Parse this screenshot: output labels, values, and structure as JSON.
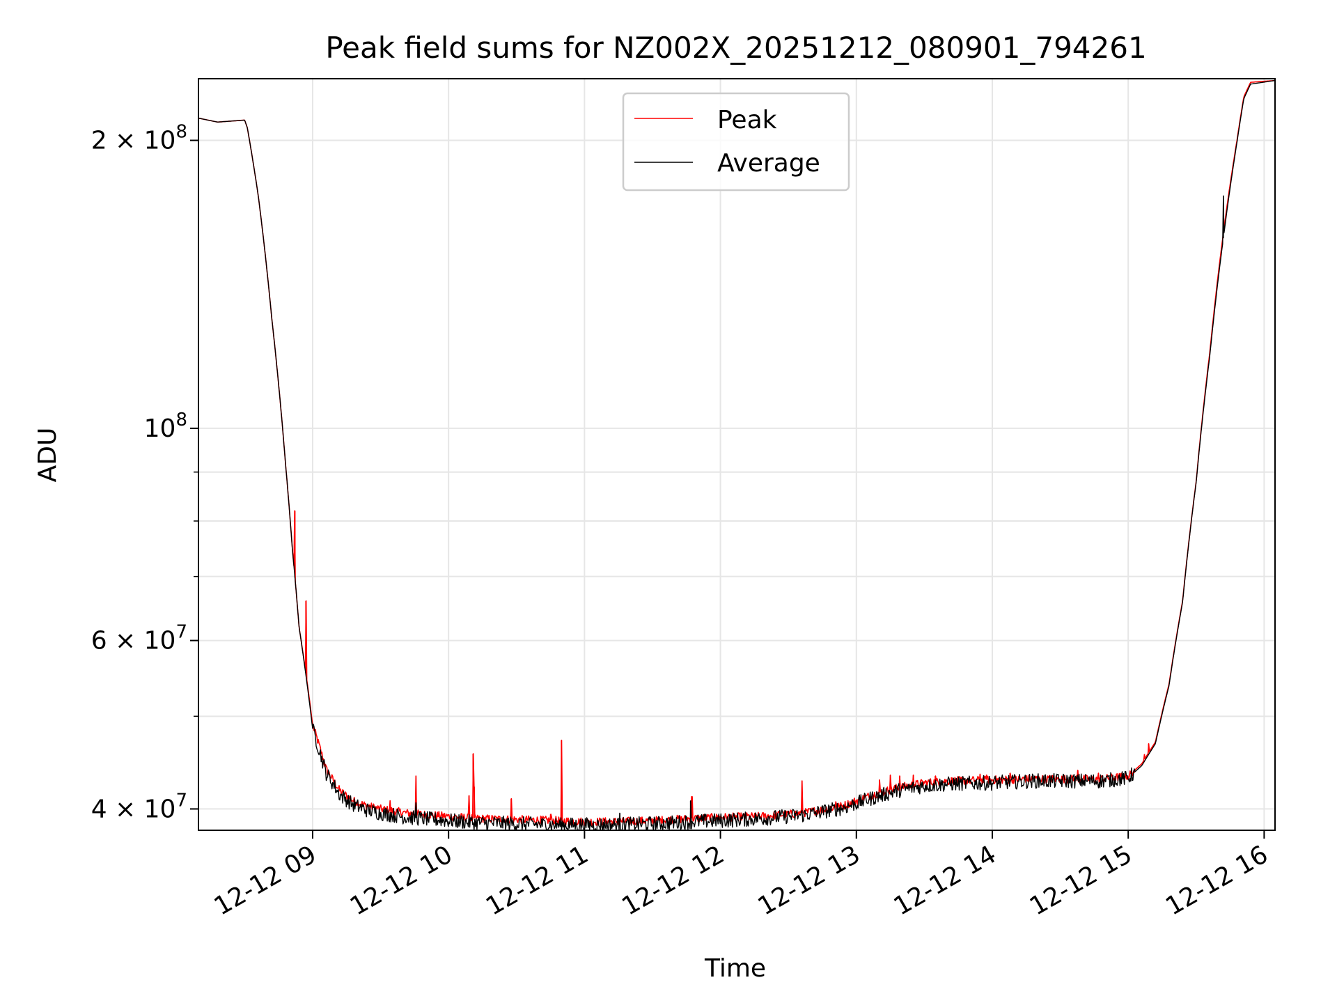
{
  "chart_data": {
    "type": "line",
    "title": "Peak field sums for NZ002X_20251212_080901_794261",
    "xlabel": "Time",
    "ylabel": "ADU",
    "yscale": "log",
    "xlim_hours": [
      8.16,
      16.08
    ],
    "ylim": [
      38000000,
      232000000
    ],
    "grid": true,
    "legend_position": "upper center",
    "x_ticks": [
      {
        "hour": 9,
        "label": "12-12 09"
      },
      {
        "hour": 10,
        "label": "12-12 10"
      },
      {
        "hour": 11,
        "label": "12-12 11"
      },
      {
        "hour": 12,
        "label": "12-12 12"
      },
      {
        "hour": 13,
        "label": "12-12 13"
      },
      {
        "hour": 14,
        "label": "12-12 14"
      },
      {
        "hour": 15,
        "label": "12-12 15"
      },
      {
        "hour": 16,
        "label": "12-12 16"
      }
    ],
    "y_ticks": [
      {
        "value": 40000000,
        "mantissa": "4",
        "exp": "7"
      },
      {
        "value": 60000000,
        "mantissa": "6",
        "exp": "7"
      },
      {
        "value": 100000000,
        "mantissa": "",
        "exp": "8"
      },
      {
        "value": 200000000,
        "mantissa": "2",
        "exp": "8"
      }
    ],
    "y_minor_ticks": [
      50000000,
      70000000,
      80000000,
      90000000
    ],
    "series": [
      {
        "name": "Peak",
        "color": "#ff0000",
        "x": [
          8.16,
          8.3,
          8.5,
          8.52,
          8.6,
          8.7,
          8.8,
          8.85,
          8.9,
          9.0,
          9.1,
          9.2,
          9.3,
          9.4,
          9.5,
          9.6,
          9.7,
          9.8,
          9.9,
          10.0,
          10.2,
          10.5,
          10.8,
          11.0,
          11.2,
          11.5,
          11.8,
          12.0,
          12.3,
          12.6,
          12.9,
          13.1,
          13.3,
          13.5,
          13.7,
          14.0,
          14.3,
          14.6,
          14.8,
          15.0,
          15.1,
          15.2,
          15.3,
          15.4,
          15.5,
          15.6,
          15.7,
          15.8,
          15.85,
          15.9,
          16.08
        ],
        "y": [
          211000000,
          209000000,
          210000000,
          206000000,
          175000000,
          130000000,
          92000000,
          75000000,
          62000000,
          49000000,
          44000000,
          41800000,
          40800000,
          40300000,
          40000000,
          39800000,
          39600000,
          39500000,
          39400000,
          39300000,
          39100000,
          39000000,
          38900000,
          38800000,
          38800000,
          38900000,
          39100000,
          39200000,
          39300000,
          39600000,
          40300000,
          41300000,
          42100000,
          42600000,
          42800000,
          42900000,
          43000000,
          43000000,
          43000000,
          43300000,
          44600000,
          47000000,
          54000000,
          66000000,
          88000000,
          120000000,
          160000000,
          200000000,
          222000000,
          230000000,
          231000000
        ],
        "spikes": [
          {
            "x": 8.87,
            "y": 82000000
          },
          {
            "x": 8.95,
            "y": 66000000
          },
          {
            "x": 9.57,
            "y": 40800000
          },
          {
            "x": 9.76,
            "y": 43300000
          },
          {
            "x": 10.15,
            "y": 41300000
          },
          {
            "x": 10.18,
            "y": 45700000
          },
          {
            "x": 10.19,
            "y": 42200000
          },
          {
            "x": 10.46,
            "y": 41000000
          },
          {
            "x": 10.75,
            "y": 39500000
          },
          {
            "x": 10.83,
            "y": 47200000
          },
          {
            "x": 11.79,
            "y": 41200000
          },
          {
            "x": 12.6,
            "y": 42800000
          },
          {
            "x": 12.85,
            "y": 40700000
          },
          {
            "x": 13.17,
            "y": 42900000
          },
          {
            "x": 13.25,
            "y": 43400000
          },
          {
            "x": 13.32,
            "y": 43300000
          },
          {
            "x": 13.42,
            "y": 43400000
          },
          {
            "x": 13.58,
            "y": 43300000
          },
          {
            "x": 13.91,
            "y": 43500000
          },
          {
            "x": 13.96,
            "y": 43400000
          },
          {
            "x": 14.13,
            "y": 43600000
          },
          {
            "x": 14.63,
            "y": 43900000
          },
          {
            "x": 14.78,
            "y": 43600000
          },
          {
            "x": 15.12,
            "y": 45600000
          },
          {
            "x": 15.15,
            "y": 46800000
          }
        ]
      },
      {
        "name": "Average",
        "color": "#000000",
        "x": [
          8.16,
          8.3,
          8.5,
          8.52,
          8.6,
          8.7,
          8.8,
          8.85,
          8.9,
          9.0,
          9.1,
          9.2,
          9.3,
          9.4,
          9.5,
          9.6,
          9.7,
          9.8,
          9.9,
          10.0,
          10.2,
          10.5,
          10.8,
          11.0,
          11.2,
          11.5,
          11.8,
          12.0,
          12.3,
          12.6,
          12.9,
          13.1,
          13.3,
          13.5,
          13.7,
          14.0,
          14.3,
          14.6,
          14.8,
          15.0,
          15.1,
          15.2,
          15.3,
          15.4,
          15.5,
          15.6,
          15.7,
          15.8,
          15.85,
          15.9,
          16.08
        ],
        "y": [
          211000000,
          209000000,
          210000000,
          206000000,
          175000000,
          130000000,
          92000000,
          75000000,
          62000000,
          48500000,
          43600000,
          41400000,
          40400000,
          39900000,
          39600000,
          39400000,
          39200000,
          39100000,
          39000000,
          38900000,
          38700000,
          38600000,
          38500000,
          38500000,
          38500000,
          38600000,
          38800000,
          38900000,
          39100000,
          39400000,
          40100000,
          41000000,
          41800000,
          42300000,
          42500000,
          42600000,
          42800000,
          42800000,
          42800000,
          43100000,
          44400000,
          46800000,
          53800000,
          65800000,
          87800000,
          119000000,
          158000000,
          199000000,
          221000000,
          229000000,
          231000000
        ],
        "spikes": [
          {
            "x": 9.76,
            "y": 40600000
          },
          {
            "x": 11.26,
            "y": 39600000
          },
          {
            "x": 11.78,
            "y": 40800000
          },
          {
            "x": 15.7,
            "y": 175000000
          }
        ]
      }
    ]
  }
}
